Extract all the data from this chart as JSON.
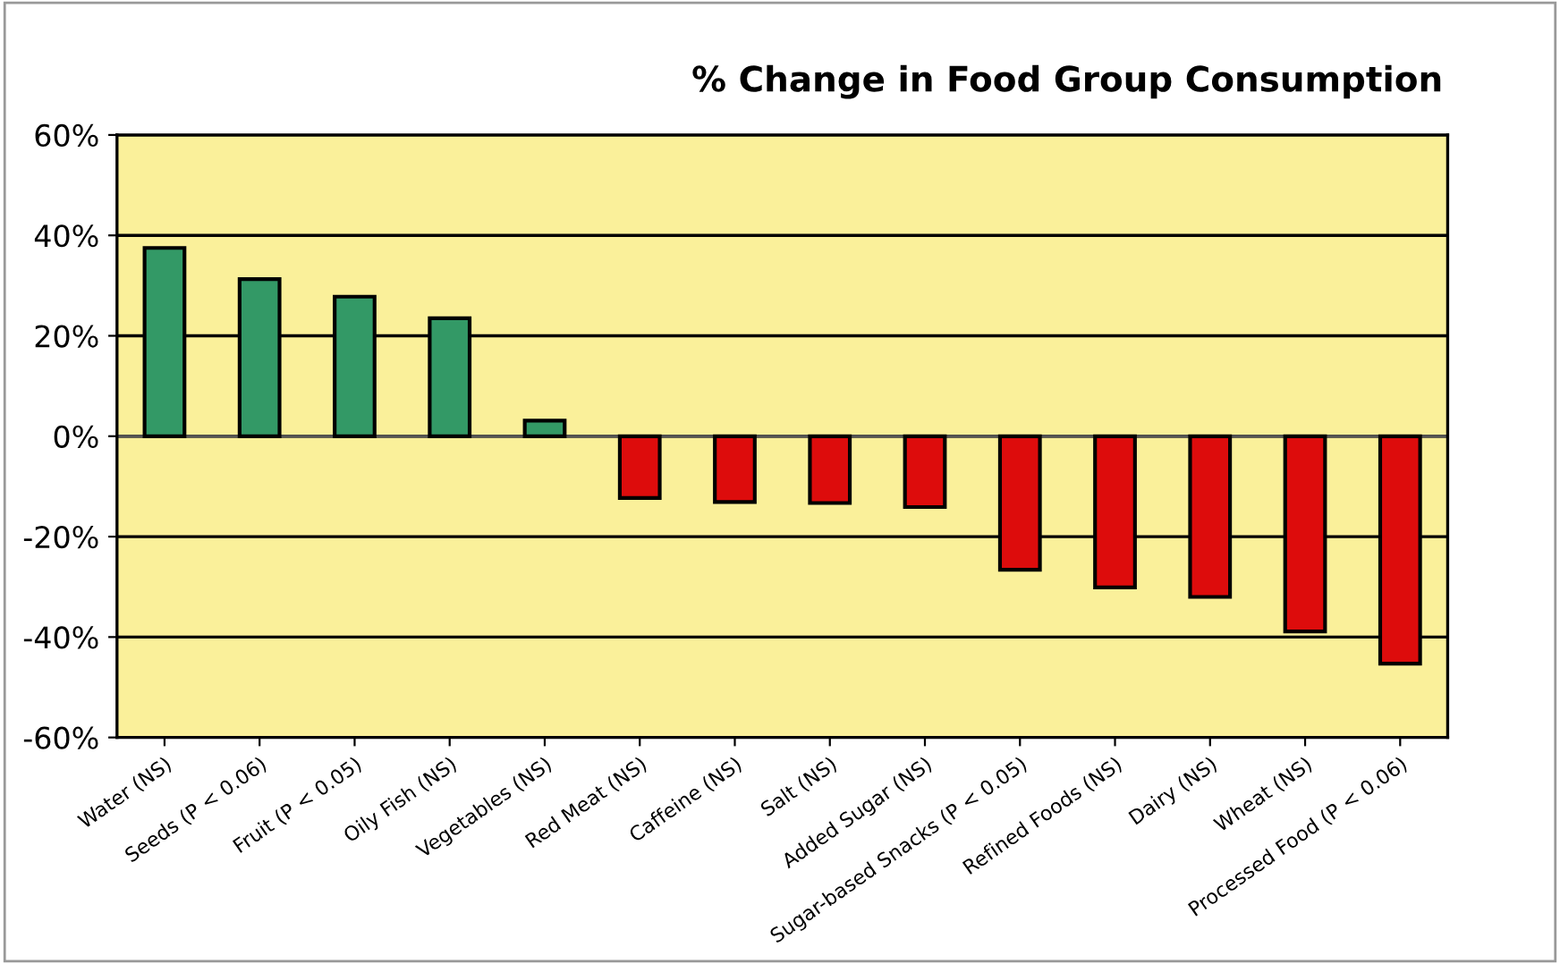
{
  "chart_data": {
    "type": "bar",
    "title": "% Change in Food Group Consumption",
    "categories": [
      "Water (NS)",
      "Seeds (P < 0.06)",
      "Fruit (P < 0.05)",
      "Oily Fish (NS)",
      "Vegetables (NS)",
      "Red Meat (NS)",
      "Caffeine (NS)",
      "Salt (NS)",
      "Added Sugar (NS)",
      "Sugar-based Snacks (P < 0.05)",
      "Refined Foods (NS)",
      "Dairy (NS)",
      "Wheat (NS)",
      "Processed Food (P < 0.06)"
    ],
    "values": [
      37.5,
      31.3,
      27.8,
      23.5,
      3.1,
      -12.3,
      -13.1,
      -13.3,
      -14.1,
      -26.6,
      -30.1,
      -32,
      -38.9,
      -45.3
    ],
    "colors": [
      "#339966",
      "#339966",
      "#339966",
      "#339966",
      "#339966",
      "#dd0c0c",
      "#dd0c0c",
      "#dd0c0c",
      "#dd0c0c",
      "#dd0c0c",
      "#dd0c0c",
      "#dd0c0c",
      "#dd0c0c",
      "#dd0c0c"
    ],
    "ylim": [
      -60,
      60
    ],
    "yticks": [
      {
        "value": -60,
        "label": "-60%"
      },
      {
        "value": -40,
        "label": "-40%"
      },
      {
        "value": -20,
        "label": "-20%"
      },
      {
        "value": 0,
        "label": "0%"
      },
      {
        "value": 20,
        "label": "20%"
      },
      {
        "value": 40,
        "label": "40%"
      },
      {
        "value": 60,
        "label": "60%"
      }
    ],
    "grid": "y",
    "legend": false
  }
}
